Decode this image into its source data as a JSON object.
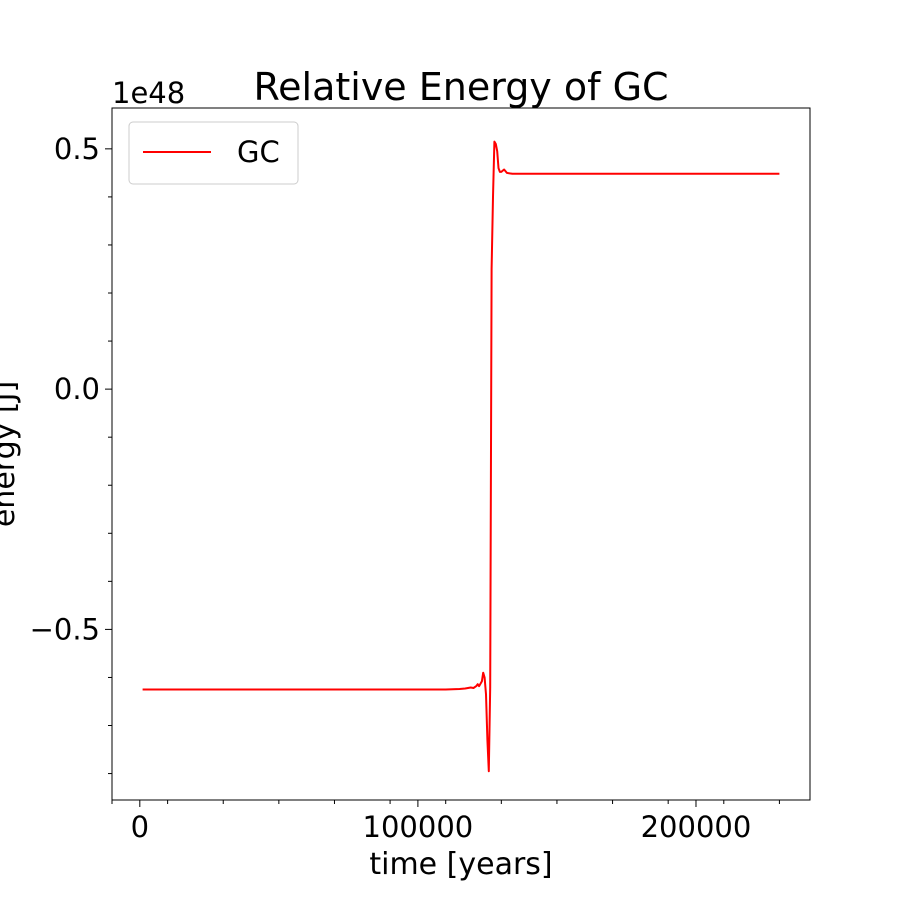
{
  "chart_data": {
    "type": "line",
    "title": "Relative Energy of GC",
    "xlabel": "time [years]",
    "ylabel": "energy [J]",
    "offset_text": "1e48",
    "xlim": [
      -10000,
      241000
    ],
    "ylim": [
      -0.855,
      0.585
    ],
    "x_ticks": [
      0,
      100000,
      200000
    ],
    "x_tick_labels": [
      "0",
      "100000",
      "200000"
    ],
    "y_ticks": [
      -0.5,
      0.0,
      0.5
    ],
    "y_tick_labels": [
      "−0.5",
      "0.0",
      "0.5"
    ],
    "legend_position": "upper left",
    "grid": false,
    "series": [
      {
        "name": "GC",
        "color": "#ff0000",
        "x": [
          1000,
          20000,
          50000,
          80000,
          100000,
          110000,
          115000,
          117000,
          118000,
          119000,
          120000,
          121000,
          121500,
          122000,
          123000,
          123500,
          124000,
          124500,
          125000,
          125500,
          126000,
          126500,
          127000,
          127500,
          128000,
          128500,
          129000,
          129500,
          130000,
          131000,
          132000,
          133000,
          134000,
          136000,
          140000,
          150000,
          180000,
          210000,
          230000
        ],
        "values": [
          -0.625,
          -0.625,
          -0.625,
          -0.625,
          -0.625,
          -0.625,
          -0.624,
          -0.623,
          -0.622,
          -0.621,
          -0.622,
          -0.618,
          -0.614,
          -0.618,
          -0.608,
          -0.59,
          -0.6,
          -0.635,
          -0.73,
          -0.795,
          -0.62,
          0.25,
          0.4,
          0.515,
          0.51,
          0.495,
          0.46,
          0.452,
          0.452,
          0.457,
          0.45,
          0.449,
          0.448,
          0.448,
          0.448,
          0.448,
          0.448,
          0.448,
          0.448
        ]
      }
    ]
  }
}
